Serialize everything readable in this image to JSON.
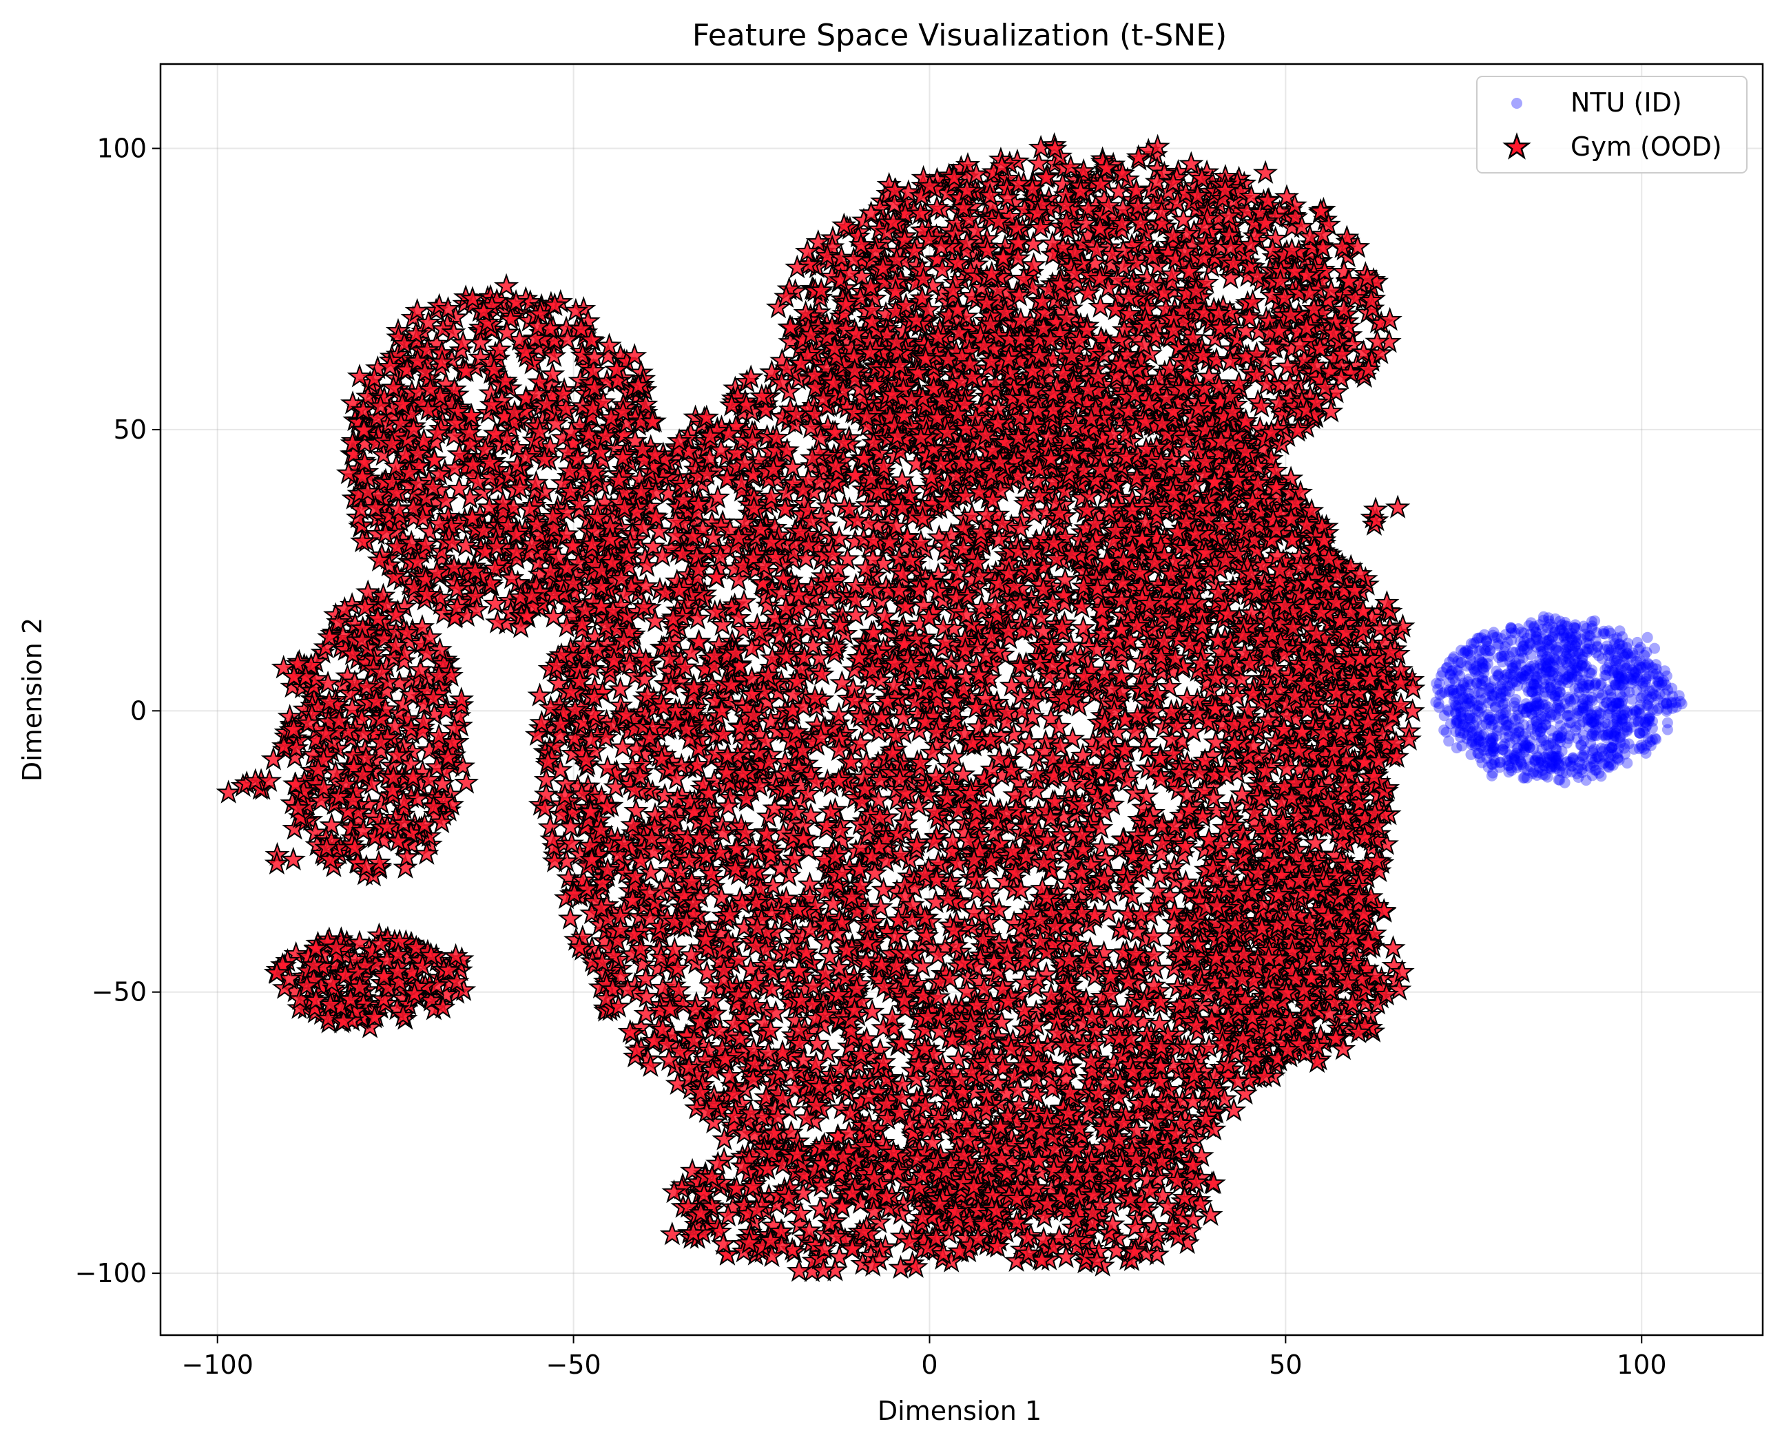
{
  "chart_data": {
    "type": "scatter",
    "title": "Feature Space Visualization (t-SNE)",
    "xlabel": "Dimension 1",
    "ylabel": "Dimension 2",
    "xlim": [
      -108,
      117
    ],
    "ylim": [
      -111,
      115
    ],
    "xticks": [
      -100,
      -50,
      0,
      50,
      100
    ],
    "yticks": [
      -100,
      -50,
      0,
      50,
      100
    ],
    "xtick_labels": [
      "−100",
      "−50",
      "0",
      "50",
      "100"
    ],
    "ytick_labels": [
      "−100",
      "−50",
      "0",
      "50",
      "100"
    ],
    "grid": true,
    "legend_position": "top-right",
    "series": [
      {
        "name": "NTU (ID)",
        "marker": "circle",
        "color": "#0000ff",
        "alpha": 0.35,
        "clusters": [
          {
            "cx": 88,
            "cy": 2,
            "rx": 17,
            "ry": 14,
            "n": 1200
          }
        ]
      },
      {
        "name": "Gym (OOD)",
        "marker": "star",
        "color": "#ff1a2e",
        "edge_color": "#000000",
        "clusters": [
          {
            "cx": 5,
            "cy": -10,
            "rx": 60,
            "ry": 80,
            "n": 5200
          },
          {
            "cx": 22,
            "cy": 70,
            "rx": 42,
            "ry": 30,
            "n": 1500
          },
          {
            "cx": -60,
            "cy": 45,
            "rx": 22,
            "ry": 30,
            "n": 800
          },
          {
            "cx": -78,
            "cy": -5,
            "rx": 13,
            "ry": 25,
            "n": 400
          },
          {
            "cx": -78,
            "cy": -48,
            "rx": 14,
            "ry": 8,
            "n": 200
          },
          {
            "cx": 50,
            "cy": -45,
            "rx": 16,
            "ry": 18,
            "n": 400
          },
          {
            "cx": 58,
            "cy": 2,
            "rx": 10,
            "ry": 25,
            "n": 300
          },
          {
            "cx": -12,
            "cy": -88,
            "rx": 25,
            "ry": 12,
            "n": 300
          },
          {
            "cx": 20,
            "cy": -85,
            "rx": 20,
            "ry": 14,
            "n": 300
          },
          {
            "cx": 40,
            "cy": 25,
            "rx": 18,
            "ry": 18,
            "n": 300
          },
          {
            "cx": -95,
            "cy": -13,
            "rx": 3,
            "ry": 1,
            "n": 8
          },
          {
            "cx": -91,
            "cy": -26,
            "rx": 1.5,
            "ry": 1.5,
            "n": 3
          },
          {
            "cx": 64,
            "cy": 34,
            "rx": 2,
            "ry": 2,
            "n": 5
          },
          {
            "cx": 55,
            "cy": -17,
            "rx": 2,
            "ry": 3,
            "n": 5
          }
        ]
      }
    ]
  }
}
